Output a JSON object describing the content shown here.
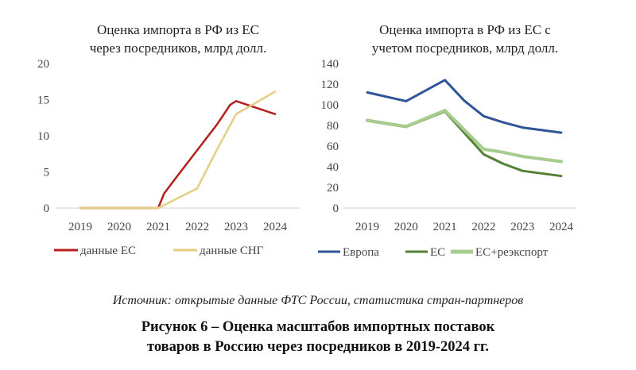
{
  "chart_data": [
    {
      "type": "line",
      "title_lines": [
        "Оценка импорта в РФ из ЕС",
        "через посредников, млрд долл."
      ],
      "x": [
        2019,
        2020,
        2021,
        2022,
        2023,
        2024
      ],
      "x_ticks": [
        "2019",
        "2020",
        "2021",
        "2022",
        "2023",
        "2024"
      ],
      "y_ticks": [
        "0",
        "5",
        "10",
        "15",
        "20"
      ],
      "ylim": [
        0,
        20
      ],
      "grid": false,
      "legend": "bottom",
      "series": [
        {
          "name": "данные ЕС",
          "color": "#b61e1e",
          "points": [
            [
              2019,
              0
            ],
            [
              2020,
              0
            ],
            [
              2021,
              0
            ],
            [
              2021.15,
              2
            ],
            [
              2021.5,
              4.5
            ],
            [
              2022,
              8
            ],
            [
              2022.5,
              11.5
            ],
            [
              2022.85,
              14.3
            ],
            [
              2023,
              14.8
            ],
            [
              2024,
              13
            ]
          ]
        },
        {
          "name": "данные СНГ",
          "color": "#e5cd85",
          "points": [
            [
              2019,
              0
            ],
            [
              2020,
              0
            ],
            [
              2021,
              0
            ],
            [
              2022,
              2.7
            ],
            [
              2022.5,
              8
            ],
            [
              2023,
              13
            ],
            [
              2024,
              16.1
            ]
          ]
        }
      ]
    },
    {
      "type": "line",
      "title_lines": [
        "Оценка импорта в РФ из ЕС с",
        "учетом посредников, млрд долл."
      ],
      "x": [
        2019,
        2020,
        2021,
        2022,
        2023,
        2024
      ],
      "x_ticks": [
        "2019",
        "2020",
        "2021",
        "2022",
        "2023",
        "2024"
      ],
      "y_ticks": [
        "0",
        "20",
        "40",
        "60",
        "80",
        "100",
        "120",
        "140"
      ],
      "ylim": [
        0,
        140
      ],
      "grid": false,
      "legend": "bottom",
      "series": [
        {
          "name": "Европа",
          "color": "#2f5596",
          "points": [
            [
              2019,
              112
            ],
            [
              2020,
              103.5
            ],
            [
              2021,
              124
            ],
            [
              2021.5,
              104
            ],
            [
              2022,
              89
            ],
            [
              2022.5,
              83
            ],
            [
              2023,
              78
            ],
            [
              2024,
              73
            ]
          ]
        },
        {
          "name": "ЕС",
          "color": "#548135",
          "points": [
            [
              2019,
              84.5
            ],
            [
              2020,
              78.5
            ],
            [
              2021,
              93.5
            ],
            [
              2022,
              52
            ],
            [
              2022.5,
              43
            ],
            [
              2023,
              36
            ],
            [
              2024,
              31
            ]
          ]
        },
        {
          "name": "ЕС+реэкспорт",
          "color": "#a6cc8e",
          "points": [
            [
              2019,
              85
            ],
            [
              2020,
              79
            ],
            [
              2021,
              94.5
            ],
            [
              2022,
              57
            ],
            [
              2022.5,
              54
            ],
            [
              2023,
              50
            ],
            [
              2024,
              45
            ]
          ]
        }
      ]
    }
  ],
  "source_text": "Источник: открытые данные ФТС России, статистика стран-партнеров",
  "caption_lines": [
    "Рисунок 6 – Оценка масштабов импортных поставок",
    "товаров в Россию через посредников в 2019-2024 гг."
  ]
}
